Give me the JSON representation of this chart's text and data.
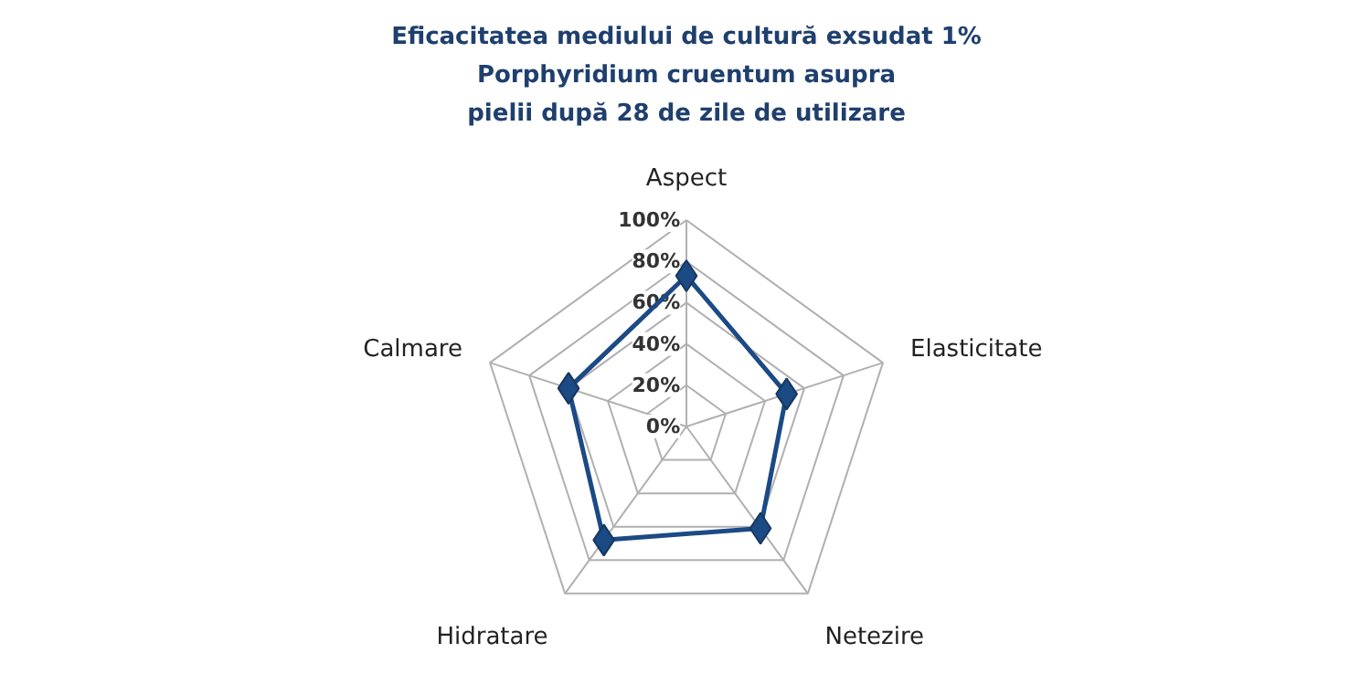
{
  "chart_data": {
    "type": "radar",
    "title": "Eficacitatea mediului de cultură exsudat 1%\nPorphyridium cruentum asupra\npielii după 28 de zile de utilizare",
    "categories": [
      "Aspect",
      "Elasticitate",
      "Netezire",
      "Hidratare",
      "Calmare"
    ],
    "series": [
      {
        "color": "#1b4a85",
        "values": [
          73,
          51,
          61,
          68,
          60
        ]
      }
    ],
    "ylim": [
      0,
      100
    ],
    "yticks": [
      {
        "value": 0,
        "label": "0%"
      },
      {
        "value": 20,
        "label": "20%"
      },
      {
        "value": 40,
        "label": "40%"
      },
      {
        "value": 60,
        "label": "60%"
      },
      {
        "value": 80,
        "label": "80%"
      },
      {
        "value": 100,
        "label": "100%"
      }
    ],
    "grid": true,
    "marker": "diamond",
    "line_style": "solid"
  }
}
